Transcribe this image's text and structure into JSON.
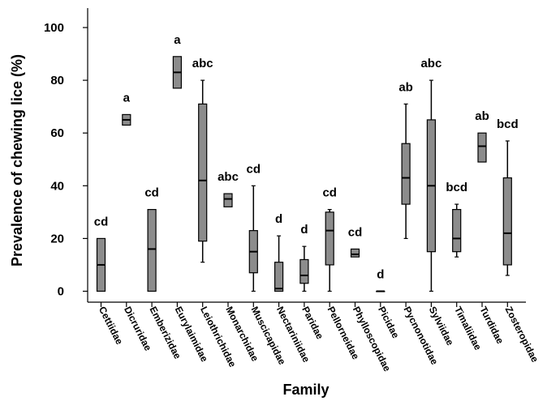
{
  "chart_data": {
    "type": "box",
    "xlabel": "Family",
    "ylabel": "Prevalence of chewing lice (%)",
    "ylim": [
      -3,
      107
    ],
    "yticks": [
      0,
      20,
      40,
      60,
      80,
      100
    ],
    "box_color": "#8c8c8c",
    "categories": [
      "Cettiidae",
      "Dicruridae",
      "Emberizidae",
      "Eurylaimidae",
      "Leiothrichidae",
      "Monarchidae",
      "Muscicapidae",
      "Nectariniidae",
      "Paridae",
      "Pellorneidae",
      "Phylloscopidae",
      "Picidae",
      "Pycnonotidae",
      "Sylviidae",
      "Timaliidae",
      "Turdidae",
      "Zosteropidae"
    ],
    "boxes": [
      {
        "min": 0,
        "q1": 0,
        "median": 10,
        "q3": 20,
        "max": 20,
        "letter": "cd"
      },
      {
        "min": 63,
        "q1": 63,
        "median": 65,
        "q3": 67,
        "max": 67,
        "letter": "a"
      },
      {
        "min": 0,
        "q1": 0,
        "median": 16,
        "q3": 31,
        "max": 31,
        "letter": "cd"
      },
      {
        "min": 77,
        "q1": 77,
        "median": 83,
        "q3": 89,
        "max": 89,
        "letter": "a"
      },
      {
        "min": 11,
        "q1": 19,
        "median": 42,
        "q3": 71,
        "max": 80,
        "letter": "abc"
      },
      {
        "min": 32,
        "q1": 32,
        "median": 35,
        "q3": 37,
        "max": 37,
        "letter": "abc"
      },
      {
        "min": 0,
        "q1": 7,
        "median": 15,
        "q3": 23,
        "max": 40,
        "letter": "cd"
      },
      {
        "min": 0,
        "q1": 0,
        "median": 1,
        "q3": 11,
        "max": 21,
        "letter": "d"
      },
      {
        "min": 0,
        "q1": 3,
        "median": 6,
        "q3": 12,
        "max": 17,
        "letter": "d"
      },
      {
        "min": 0,
        "q1": 10,
        "median": 23,
        "q3": 30,
        "max": 31,
        "letter": "cd"
      },
      {
        "min": 13,
        "q1": 13,
        "median": 14,
        "q3": 16,
        "max": 16,
        "letter": "cd"
      },
      {
        "min": 0,
        "q1": 0,
        "median": 0,
        "q3": 0,
        "max": 0,
        "letter": "d"
      },
      {
        "min": 20,
        "q1": 33,
        "median": 43,
        "q3": 56,
        "max": 71,
        "letter": "ab"
      },
      {
        "min": 0,
        "q1": 15,
        "median": 40,
        "q3": 65,
        "max": 80,
        "letter": "abc"
      },
      {
        "min": 13,
        "q1": 15,
        "median": 20,
        "q3": 31,
        "max": 33,
        "letter": "bcd"
      },
      {
        "min": 49,
        "q1": 49,
        "median": 55,
        "q3": 60,
        "max": 60,
        "letter": "ab"
      },
      {
        "min": 6,
        "q1": 10,
        "median": 22,
        "q3": 43,
        "max": 57,
        "letter": "bcd"
      }
    ]
  }
}
